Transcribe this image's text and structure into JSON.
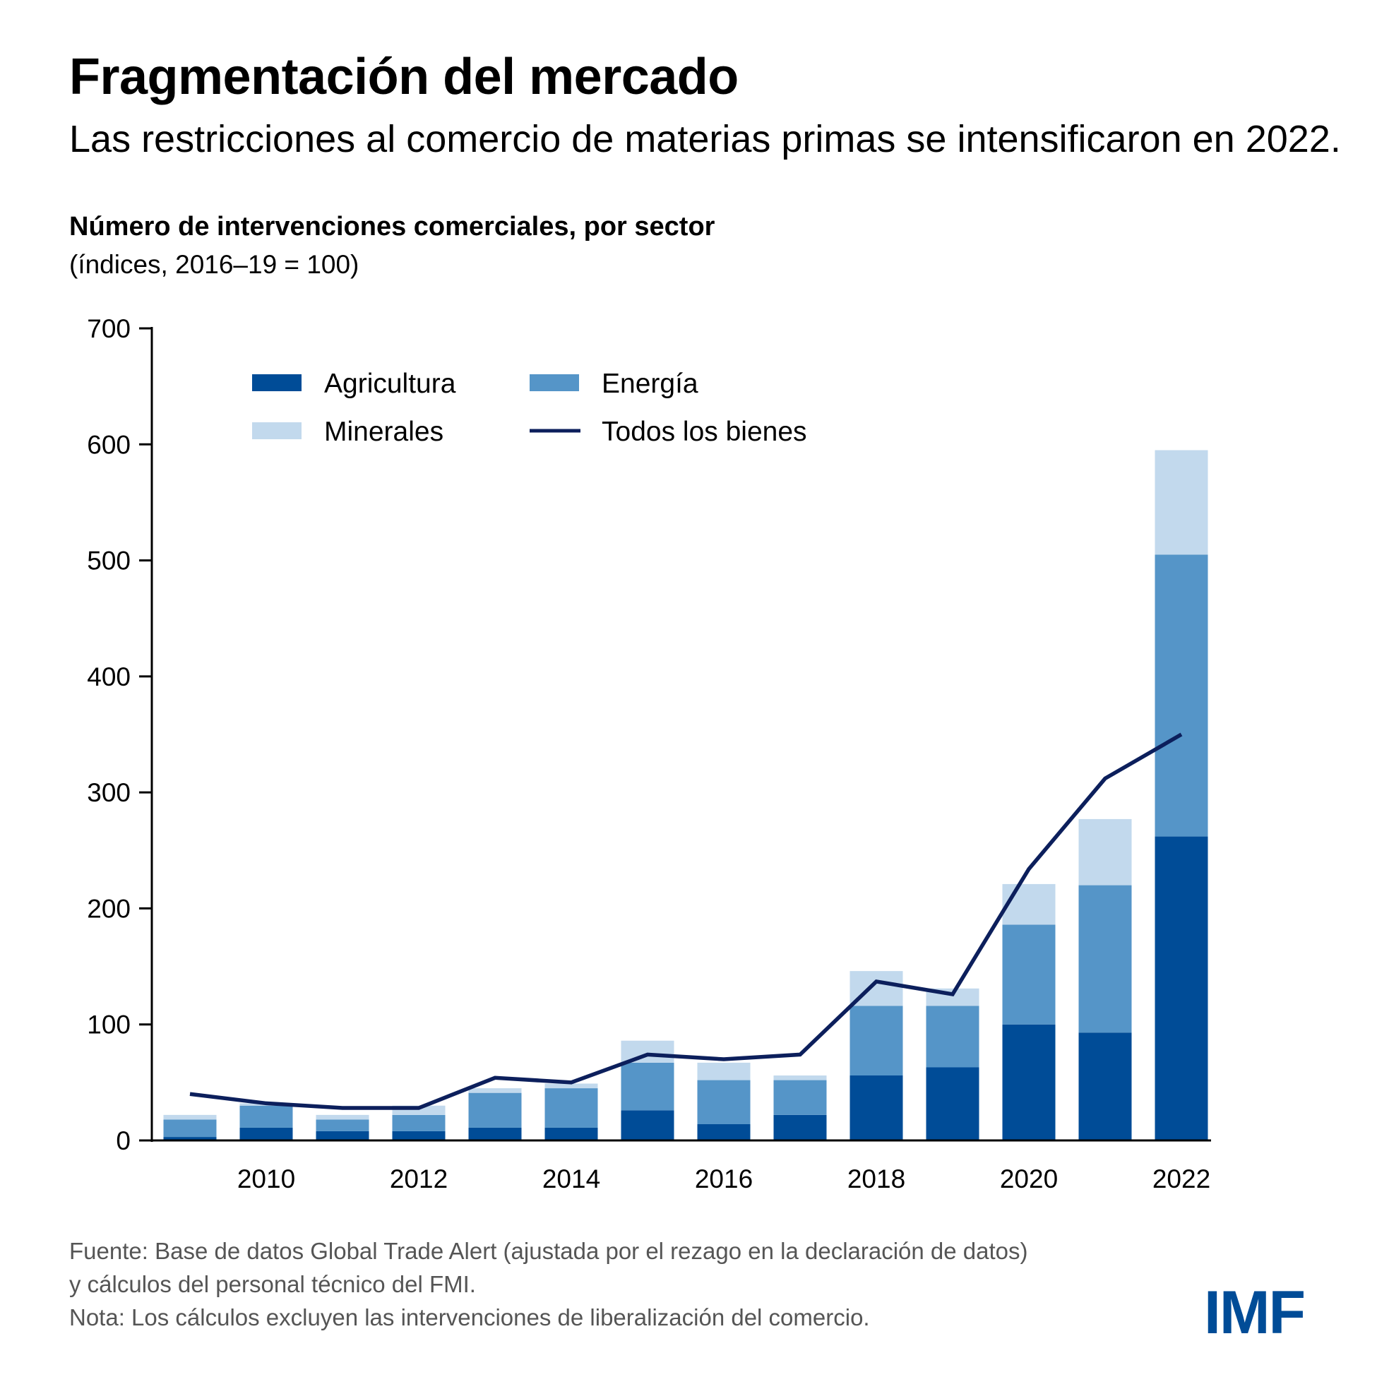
{
  "header": {
    "title": "Fragmentación del mercado",
    "subtitle": "Las restricciones al comercio de materias primas se intensificaron en 2022.",
    "chart_heading": "Número de intervenciones comerciales, por sector",
    "chart_units": "(índices, 2016–19 = 100)"
  },
  "footer": {
    "source_line1": "Fuente: Base de datos Global Trade Alert (ajustada por el rezago en la declaración de datos)",
    "source_line2": "y cálculos del personal técnico del FMI.",
    "note": "Nota: Los cálculos excluyen las intervenciones de liberalización del comercio.",
    "logo": "IMF"
  },
  "colors": {
    "agricultura": "#004c97",
    "energia": "#5595c8",
    "minerales": "#c2d9ed",
    "todos": "#0c1f5c",
    "axis": "#000000"
  },
  "chart_data": {
    "type": "bar",
    "stacked": true,
    "title": "Número de intervenciones comerciales, por sector",
    "subtitle": "(índices, 2016–19 = 100)",
    "xlabel": "",
    "ylabel": "",
    "ylim": [
      0,
      700
    ],
    "yticks": [
      0,
      100,
      200,
      300,
      400,
      500,
      600,
      700
    ],
    "categories": [
      2009,
      2010,
      2011,
      2012,
      2013,
      2014,
      2015,
      2016,
      2017,
      2018,
      2019,
      2020,
      2021,
      2022
    ],
    "xtick_labels": [
      "2010",
      "2012",
      "2014",
      "2016",
      "2018",
      "2020",
      "2022"
    ],
    "xtick_years": [
      2010,
      2012,
      2014,
      2016,
      2018,
      2020,
      2022
    ],
    "grid": false,
    "legend_position": "top-left",
    "series": [
      {
        "name": "Agricultura",
        "type": "bar",
        "values": [
          3,
          11,
          8,
          8,
          11,
          11,
          26,
          14,
          22,
          56,
          63,
          100,
          93,
          262
        ]
      },
      {
        "name": "Energía",
        "type": "bar",
        "values": [
          15,
          19,
          10,
          14,
          30,
          34,
          41,
          38,
          30,
          60,
          53,
          86,
          127,
          243
        ]
      },
      {
        "name": "Minerales",
        "type": "bar",
        "values": [
          4,
          2,
          4,
          8,
          4,
          4,
          19,
          15,
          4,
          30,
          15,
          35,
          57,
          90
        ]
      },
      {
        "name": "Todos los bienes",
        "type": "line",
        "values": [
          40,
          32,
          28,
          28,
          54,
          50,
          74,
          70,
          74,
          137,
          126,
          234,
          312,
          350
        ]
      }
    ]
  }
}
